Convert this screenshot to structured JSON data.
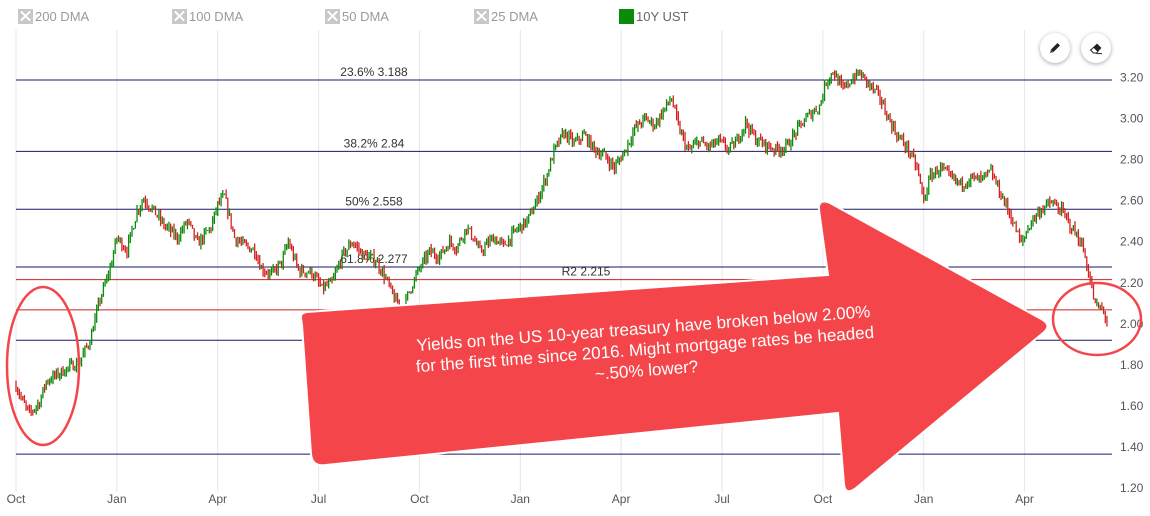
{
  "legend": [
    {
      "label": "200 DMA",
      "enabled": false
    },
    {
      "label": "100 DMA",
      "enabled": false
    },
    {
      "label": "50 DMA",
      "enabled": false
    },
    {
      "label": "25 DMA",
      "enabled": false
    },
    {
      "label": "10Y UST",
      "enabled": true,
      "color": "#0b8a0b"
    }
  ],
  "tools": {
    "draw": "pencil-icon",
    "erase": "eraser-icon"
  },
  "callout": {
    "text": "Yields on the US 10-year treasury have broken below 2.00% for the first time since 2016.  Might mortgage rates be headed ~.50% lower?",
    "color": "#f4464a"
  },
  "chart_data": {
    "type": "line",
    "series": [
      {
        "name": "10Y UST",
        "up_color": "#0b8a0b",
        "down_color": "#d42020"
      }
    ],
    "x_ticks": [
      "Oct",
      "Jan",
      "Apr",
      "Jul",
      "Oct",
      "Jan",
      "Apr",
      "Jul",
      "Oct",
      "Jan",
      "Apr"
    ],
    "x_tick_months": [
      0,
      3,
      6,
      9,
      12,
      15,
      18,
      21,
      24,
      27,
      30
    ],
    "x_domain_months": [
      0,
      32.6
    ],
    "y_ticks": [
      "1.20",
      "1.40",
      "1.60",
      "1.80",
      "2.00",
      "2.20",
      "2.40",
      "2.60",
      "2.80",
      "3.00",
      "3.20"
    ],
    "ylim": [
      1.2,
      3.3
    ],
    "points": [
      [
        0.0,
        1.7
      ],
      [
        0.2,
        1.62
      ],
      [
        0.4,
        1.56
      ],
      [
        0.7,
        1.62
      ],
      [
        0.9,
        1.72
      ],
      [
        1.2,
        1.75
      ],
      [
        1.5,
        1.78
      ],
      [
        1.9,
        1.82
      ],
      [
        2.2,
        1.92
      ],
      [
        2.5,
        2.12
      ],
      [
        2.8,
        2.27
      ],
      [
        3.0,
        2.42
      ],
      [
        3.3,
        2.36
      ],
      [
        3.6,
        2.55
      ],
      [
        3.8,
        2.61
      ],
      [
        4.1,
        2.55
      ],
      [
        4.4,
        2.48
      ],
      [
        4.8,
        2.42
      ],
      [
        5.1,
        2.5
      ],
      [
        5.4,
        2.39
      ],
      [
        5.8,
        2.47
      ],
      [
        6.0,
        2.58
      ],
      [
        6.2,
        2.62
      ],
      [
        6.5,
        2.42
      ],
      [
        6.8,
        2.38
      ],
      [
        7.1,
        2.36
      ],
      [
        7.3,
        2.27
      ],
      [
        7.6,
        2.24
      ],
      [
        7.9,
        2.3
      ],
      [
        8.1,
        2.4
      ],
      [
        8.4,
        2.26
      ],
      [
        8.8,
        2.25
      ],
      [
        9.1,
        2.17
      ],
      [
        9.4,
        2.2
      ],
      [
        9.7,
        2.33
      ],
      [
        10.0,
        2.4
      ],
      [
        10.3,
        2.34
      ],
      [
        10.7,
        2.31
      ],
      [
        11.0,
        2.22
      ],
      [
        11.2,
        2.14
      ],
      [
        11.5,
        2.06
      ],
      [
        11.7,
        2.16
      ],
      [
        12.0,
        2.27
      ],
      [
        12.3,
        2.35
      ],
      [
        12.6,
        2.33
      ],
      [
        12.9,
        2.4
      ],
      [
        13.1,
        2.37
      ],
      [
        13.4,
        2.47
      ],
      [
        13.6,
        2.42
      ],
      [
        13.8,
        2.35
      ],
      [
        14.2,
        2.42
      ],
      [
        14.5,
        2.38
      ],
      [
        14.9,
        2.46
      ],
      [
        15.2,
        2.5
      ],
      [
        15.5,
        2.6
      ],
      [
        15.8,
        2.73
      ],
      [
        16.0,
        2.84
      ],
      [
        16.3,
        2.93
      ],
      [
        16.6,
        2.88
      ],
      [
        16.9,
        2.92
      ],
      [
        17.2,
        2.85
      ],
      [
        17.5,
        2.82
      ],
      [
        17.8,
        2.76
      ],
      [
        18.1,
        2.84
      ],
      [
        18.4,
        2.95
      ],
      [
        18.7,
        3.0
      ],
      [
        19.0,
        2.97
      ],
      [
        19.3,
        3.05
      ],
      [
        19.5,
        3.1
      ],
      [
        19.7,
        2.96
      ],
      [
        20.0,
        2.84
      ],
      [
        20.3,
        2.89
      ],
      [
        20.6,
        2.86
      ],
      [
        20.9,
        2.89
      ],
      [
        21.2,
        2.85
      ],
      [
        21.4,
        2.88
      ],
      [
        21.7,
        2.98
      ],
      [
        22.0,
        2.9
      ],
      [
        22.3,
        2.87
      ],
      [
        22.6,
        2.85
      ],
      [
        22.9,
        2.86
      ],
      [
        23.3,
        2.96
      ],
      [
        23.6,
        3.02
      ],
      [
        23.9,
        3.06
      ],
      [
        24.1,
        3.18
      ],
      [
        24.3,
        3.23
      ],
      [
        24.6,
        3.14
      ],
      [
        24.9,
        3.2
      ],
      [
        25.1,
        3.22
      ],
      [
        25.4,
        3.16
      ],
      [
        25.7,
        3.1
      ],
      [
        25.9,
        3.02
      ],
      [
        26.2,
        2.92
      ],
      [
        26.5,
        2.86
      ],
      [
        26.8,
        2.76
      ],
      [
        27.0,
        2.6
      ],
      [
        27.2,
        2.72
      ],
      [
        27.5,
        2.76
      ],
      [
        27.8,
        2.71
      ],
      [
        28.1,
        2.68
      ],
      [
        28.4,
        2.71
      ],
      [
        28.7,
        2.7
      ],
      [
        29.0,
        2.74
      ],
      [
        29.3,
        2.63
      ],
      [
        29.6,
        2.52
      ],
      [
        29.9,
        2.39
      ],
      [
        30.2,
        2.5
      ],
      [
        30.5,
        2.56
      ],
      [
        30.8,
        2.59
      ],
      [
        31.1,
        2.55
      ],
      [
        31.4,
        2.47
      ],
      [
        31.7,
        2.39
      ],
      [
        31.9,
        2.25
      ],
      [
        32.1,
        2.09
      ],
      [
        32.3,
        2.07
      ],
      [
        32.5,
        2.0
      ]
    ],
    "fib_levels": [
      {
        "label": "23.6% 3.188",
        "value": 3.188
      },
      {
        "label": "38.2% 2.84",
        "value": 2.84
      },
      {
        "label": "50% 2.558",
        "value": 2.558
      },
      {
        "label": "61.8% 2.277",
        "value": 2.277
      },
      {
        "label": "",
        "value": 1.92
      },
      {
        "label": "",
        "value": 1.365
      }
    ],
    "pivot_levels": [
      {
        "label": "R2 2.215",
        "value": 2.215
      },
      {
        "label": "",
        "value": 2.068
      }
    ],
    "fib_color": "#1a1a66",
    "pivot_color": "#cc2222"
  }
}
